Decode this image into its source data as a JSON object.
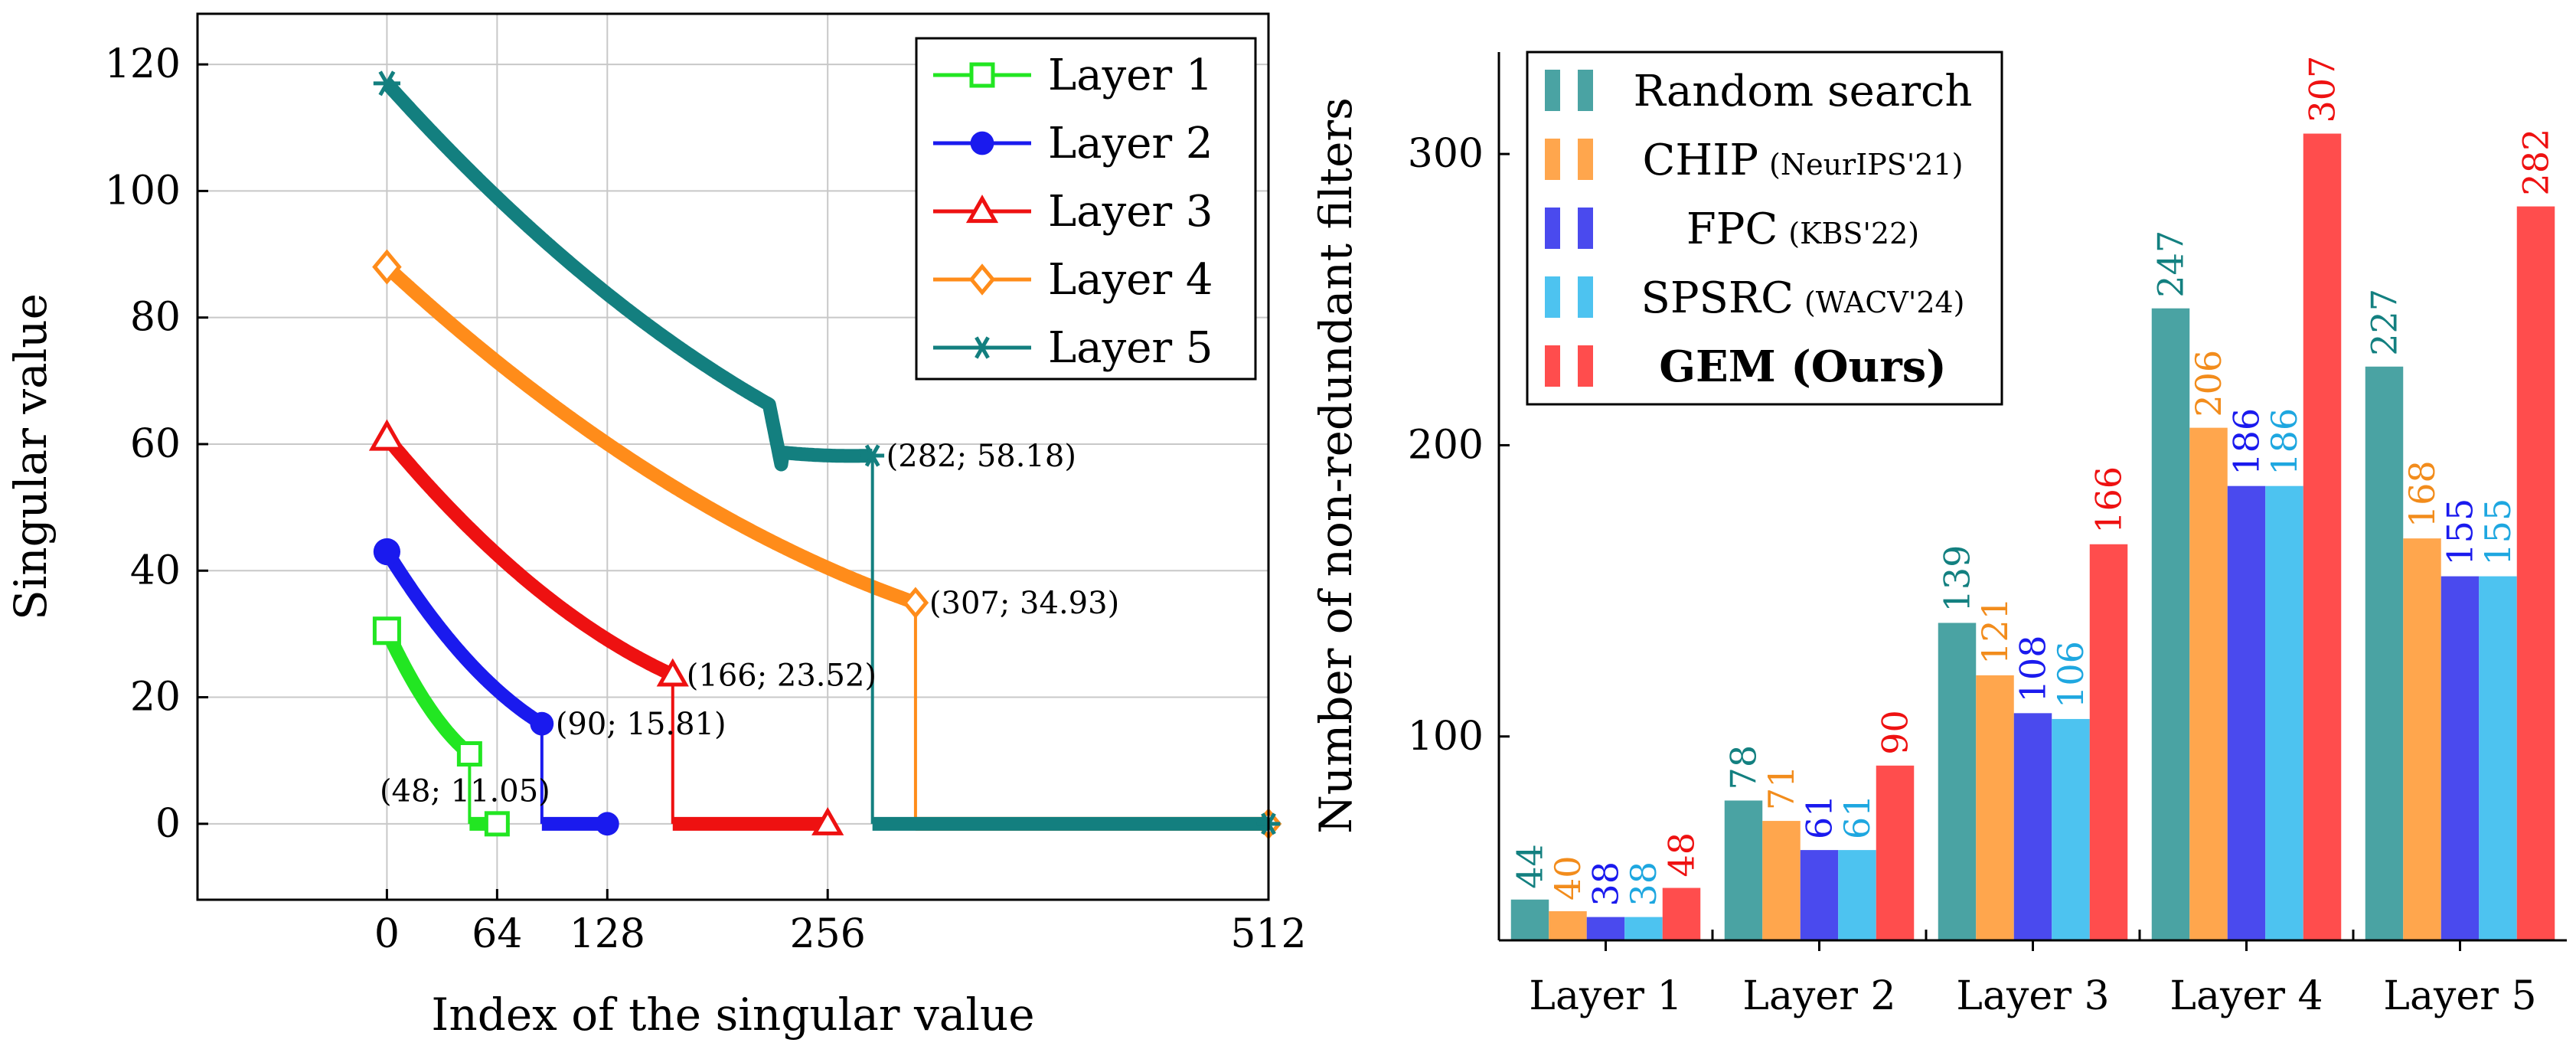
{
  "chart_data": [
    {
      "type": "line",
      "title": "",
      "xlabel": "Index of the singular value",
      "ylabel": "Singular value",
      "xlim": [
        -110,
        512
      ],
      "ylim": [
        -12,
        128
      ],
      "xticks": [
        0,
        64,
        128,
        256,
        512
      ],
      "yticks": [
        0,
        20,
        40,
        60,
        80,
        100,
        120
      ],
      "grid": true,
      "legend_position": "top-right",
      "series": [
        {
          "name": "Layer 1",
          "color": "#22e622",
          "marker": "square-open",
          "start": 30.5,
          "end": 11.05,
          "drop_index": 48,
          "length": 64,
          "annotation": "(48; 11.05)"
        },
        {
          "name": "Layer 2",
          "color": "#1a1aee",
          "marker": "circle",
          "start": 43,
          "end": 15.81,
          "drop_index": 90,
          "length": 128,
          "annotation": "(90; 15.81)"
        },
        {
          "name": "Layer 3",
          "color": "#ee1111",
          "marker": "triangle-open",
          "start": 61,
          "end": 23.52,
          "drop_index": 166,
          "length": 256,
          "annotation": "(166; 23.52)"
        },
        {
          "name": "Layer 4",
          "color": "#ff8c1a",
          "marker": "diamond-open",
          "start": 88,
          "end": 34.93,
          "drop_index": 307,
          "length": 512,
          "annotation": "(307; 34.93)"
        },
        {
          "name": "Layer 5",
          "color": "#137f7f",
          "marker": "star",
          "start": 117,
          "end": 58.18,
          "drop_index": 282,
          "length": 512,
          "annotation": "(282; 58.18)"
        }
      ]
    },
    {
      "type": "bar",
      "title": "",
      "xlabel": "",
      "ylabel": "Number of non-redundant filters",
      "ylim": [
        30,
        335
      ],
      "yticks": [
        100,
        200,
        300
      ],
      "grid": false,
      "legend_position": "top-left",
      "categories": [
        "Layer 1",
        "Layer 2",
        "Layer 3",
        "Layer 4",
        "Layer 5"
      ],
      "series": [
        {
          "name": "Random search",
          "tag": "",
          "bold": false,
          "color": "#4aa3a3",
          "label_color": "#138080",
          "values": [
            44,
            78,
            139,
            247,
            227
          ]
        },
        {
          "name": "CHIP",
          "tag": "(NeurIPS'21)",
          "bold": false,
          "color": "#ffa64d",
          "label_color": "#f28c1c",
          "values": [
            40,
            71,
            121,
            206,
            168
          ]
        },
        {
          "name": "FPC",
          "tag": "(KBS'22)",
          "bold": false,
          "color": "#4a4aee",
          "label_color": "#1a1aee",
          "values": [
            38,
            61,
            108,
            186,
            155
          ]
        },
        {
          "name": "SPSRC",
          "tag": "(WACV'24)",
          "bold": false,
          "color": "#4dc3f0",
          "label_color": "#1ea7e0",
          "values": [
            38,
            61,
            106,
            186,
            155
          ]
        },
        {
          "name": "GEM (Ours)",
          "tag": "",
          "bold": true,
          "color": "#ff4d4d",
          "label_color": "#ee1111",
          "values": [
            48,
            90,
            166,
            307,
            282
          ]
        }
      ]
    }
  ]
}
